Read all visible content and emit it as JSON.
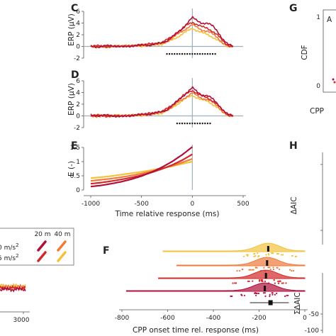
{
  "panels": {
    "C": "C",
    "D": "D",
    "E": "E",
    "F": "F",
    "G": "G",
    "H": "H"
  },
  "colors": {
    "s1": "#b0103a",
    "s2": "#d12a2a",
    "s3": "#f07a3a",
    "s4": "#f3c23a",
    "axis": "#555555",
    "ref": "#a0b0b8",
    "dots": "#111111"
  },
  "legend": {
    "col1": "20 m",
    "col2": "40 m",
    "row1": "0 m/s",
    "row2": "5 m/s",
    "sup": "2"
  },
  "left_fragment": {
    "ticks": [
      "3000"
    ]
  },
  "g_fragment": {
    "ylabel": "CDF",
    "xlabel": "CPP",
    "ticks": [
      "1",
      "0"
    ],
    "inset": "A"
  },
  "h_fragment": {
    "ylabel1": "ΔAIC",
    "ylabel2": "ΣΔAIC",
    "ticks": [
      "-50",
      "-100"
    ]
  },
  "chart_data": [
    {
      "id": "C",
      "type": "line",
      "ylabel": "ERP (μV)",
      "xlabel": "",
      "xlim": [
        -1000,
        500
      ],
      "ylim": [
        -2,
        6
      ],
      "yticks": [
        "6",
        "4",
        "2",
        "0",
        "-2"
      ],
      "x": [
        -1000,
        -900,
        -800,
        -700,
        -600,
        -500,
        -400,
        -300,
        -250,
        -200,
        -150,
        -100,
        -50,
        0,
        50,
        100,
        150,
        200,
        250,
        300,
        350,
        400
      ],
      "series": [
        {
          "values": [
            0.1,
            -0.1,
            0.2,
            -0.1,
            0.1,
            0.2,
            0.3,
            0.6,
            1.0,
            1.6,
            2.3,
            3.0,
            4.0,
            4.9,
            4.4,
            4.0,
            3.9,
            3.5,
            2.6,
            1.2,
            0.3,
            0.1
          ]
        },
        {
          "values": [
            0.0,
            0.1,
            -0.1,
            0.1,
            0.0,
            0.3,
            0.4,
            0.7,
            1.1,
            1.7,
            2.4,
            3.0,
            3.7,
            4.2,
            3.7,
            3.3,
            3.1,
            2.6,
            1.9,
            0.9,
            0.2,
            0.0
          ]
        },
        {
          "values": [
            -0.1,
            0.0,
            0.1,
            0.0,
            0.2,
            0.2,
            0.3,
            0.5,
            0.9,
            1.4,
            2.0,
            2.6,
            3.2,
            3.7,
            3.2,
            2.8,
            2.6,
            2.1,
            1.5,
            0.6,
            0.1,
            0.0
          ]
        },
        {
          "values": [
            0.1,
            -0.1,
            0.0,
            0.1,
            0.1,
            0.1,
            0.2,
            0.4,
            0.7,
            1.1,
            1.6,
            2.1,
            2.6,
            3.1,
            2.7,
            2.3,
            2.0,
            1.6,
            1.1,
            0.4,
            0.0,
            0.1
          ]
        }
      ],
      "sig_range": [
        -250,
        225
      ]
    },
    {
      "id": "D",
      "type": "line",
      "ylabel": "ERP (μV)",
      "xlabel": "",
      "xlim": [
        -1000,
        500
      ],
      "ylim": [
        -2,
        6
      ],
      "yticks": [
        "6",
        "4",
        "2",
        "0",
        "-2"
      ],
      "x": [
        -1000,
        -900,
        -800,
        -700,
        -600,
        -500,
        -400,
        -300,
        -250,
        -200,
        -150,
        -100,
        -50,
        0,
        50,
        100,
        150,
        200,
        250,
        300,
        350,
        400
      ],
      "series": [
        {
          "values": [
            0.2,
            0.0,
            0.1,
            -0.2,
            0.1,
            0.2,
            0.4,
            0.7,
            1.1,
            1.7,
            2.5,
            3.3,
            4.0,
            4.8,
            4.1,
            3.6,
            3.4,
            2.9,
            2.1,
            1.0,
            0.2,
            0.1
          ]
        },
        {
          "values": [
            0.0,
            0.1,
            -0.1,
            0.1,
            0.0,
            0.3,
            0.4,
            0.8,
            1.2,
            1.8,
            2.6,
            3.3,
            3.9,
            4.4,
            3.8,
            3.3,
            3.1,
            2.6,
            1.9,
            0.9,
            0.2,
            0.0
          ]
        },
        {
          "values": [
            -0.1,
            0.0,
            0.1,
            0.0,
            0.1,
            0.2,
            0.3,
            0.6,
            1.0,
            1.5,
            2.2,
            2.8,
            3.4,
            3.9,
            3.4,
            3.0,
            2.8,
            2.3,
            1.7,
            0.7,
            0.1,
            0.0
          ]
        },
        {
          "values": [
            0.0,
            0.1,
            0.0,
            0.1,
            0.1,
            0.1,
            0.3,
            0.5,
            0.9,
            1.4,
            2.0,
            2.6,
            3.1,
            3.5,
            3.1,
            2.7,
            2.5,
            2.0,
            1.4,
            0.6,
            0.1,
            0.0
          ]
        }
      ],
      "sig_range": [
        -150,
        175
      ]
    },
    {
      "id": "E",
      "type": "line",
      "ylabel": "E (-)",
      "xlabel": "Time relative response (ms)",
      "xlim": [
        -1000,
        500
      ],
      "ylim": [
        0,
        1.5
      ],
      "yticks": [
        "1.5",
        "1",
        "0.5",
        "0"
      ],
      "xticks": [
        "-1000",
        "-500",
        "0",
        "500"
      ],
      "xtick_vals": [
        -1000,
        -500,
        0,
        500
      ],
      "x": [
        -1000,
        -900,
        -800,
        -700,
        -600,
        -500,
        -400,
        -300,
        -200,
        -100,
        0
      ],
      "series": [
        {
          "values": [
            0.12,
            0.16,
            0.22,
            0.29,
            0.38,
            0.49,
            0.63,
            0.8,
            1.0,
            1.24,
            1.52
          ]
        },
        {
          "values": [
            0.22,
            0.26,
            0.31,
            0.37,
            0.44,
            0.52,
            0.62,
            0.74,
            0.88,
            1.05,
            1.26
          ]
        },
        {
          "values": [
            0.32,
            0.36,
            0.4,
            0.45,
            0.51,
            0.58,
            0.66,
            0.75,
            0.85,
            0.97,
            1.1
          ]
        },
        {
          "values": [
            0.42,
            0.45,
            0.49,
            0.54,
            0.59,
            0.64,
            0.7,
            0.77,
            0.84,
            0.92,
            1.0
          ]
        }
      ]
    },
    {
      "id": "F",
      "type": "scatter",
      "xlabel": "CPP onset time rel. response (ms)",
      "xlim": [
        -800,
        0
      ],
      "xticks": [
        "-800",
        "-600",
        "-400",
        "-200",
        "0"
      ],
      "xtick_vals": [
        -800,
        -600,
        -400,
        -200,
        0
      ],
      "rows": [
        {
          "median": -160,
          "start": -620
        },
        {
          "median": -165,
          "start": -560
        },
        {
          "median": -170,
          "start": -640
        },
        {
          "median": -175,
          "start": -780
        }
      ],
      "summary": {
        "median": -150,
        "q1": -200,
        "q3": -110
      }
    }
  ]
}
